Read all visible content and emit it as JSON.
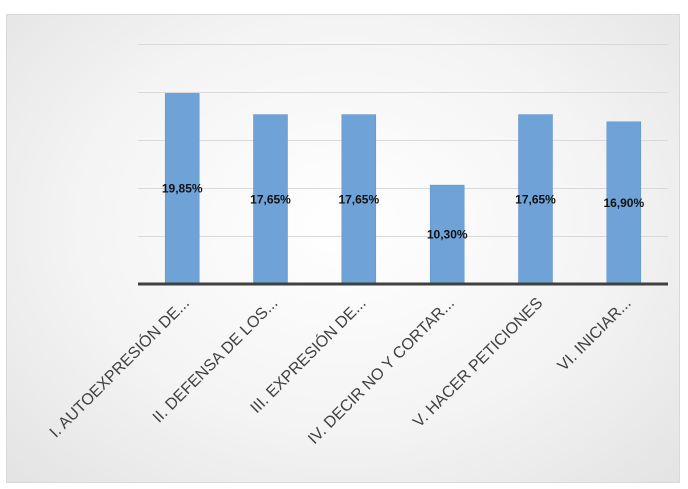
{
  "chart_data": {
    "type": "bar",
    "categories": [
      "I. AUTOEXPRESIÓN DE...",
      "II. DEFENSA DE LOS...",
      "III. EXPRESIÓN DE...",
      "IV. DECIR NO Y CORTAR...",
      "V. HACER PETICIONES",
      "VI. INICIAR..."
    ],
    "values": [
      19.85,
      17.65,
      17.65,
      10.3,
      17.65,
      16.9
    ],
    "data_labels": [
      "19,85%",
      "17,65%",
      "17,65%",
      "10,30%",
      "17,65%",
      "16,90%"
    ],
    "ylim": [
      0,
      25
    ],
    "grid": true,
    "legend": "none",
    "colors": {
      "bar": "#6fa3d8",
      "axis": "#404040",
      "grid": "#d9d9d9"
    }
  }
}
